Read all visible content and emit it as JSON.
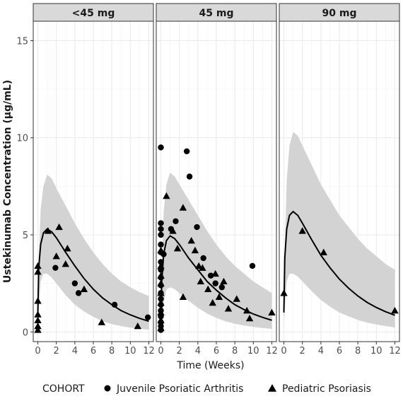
{
  "chart_data": {
    "type": "scatter",
    "title": "",
    "xlabel": "Time (Weeks)",
    "ylabel": "Ustekinumab Concentration (μg/mL)",
    "xlim": [
      -0.5,
      12.5
    ],
    "ylim": [
      -0.5,
      16
    ],
    "x_ticks": [
      0,
      2,
      4,
      6,
      8,
      10,
      12
    ],
    "y_ticks": [
      0,
      5,
      10,
      15
    ],
    "grid": true,
    "legend": {
      "title": "COHORT",
      "placement": "bottom",
      "entries": [
        {
          "label": "Juvenile Psoriatic Arthritis",
          "shape": "circle"
        },
        {
          "label": "Pediatric Psoriasis",
          "shape": "triangle"
        }
      ]
    },
    "colors": {
      "points": "#000000",
      "line": "#000000",
      "band": "#d3d3d3",
      "strip": "#d9d9d9",
      "grid": "#ebebeb"
    },
    "panels": [
      {
        "label": "<45 mg",
        "median_curve": [
          [
            0,
            1.0
          ],
          [
            0.1,
            3.3
          ],
          [
            0.3,
            4.5
          ],
          [
            0.6,
            5.1
          ],
          [
            1.0,
            5.3
          ],
          [
            1.5,
            5.15
          ],
          [
            2,
            4.85
          ],
          [
            3,
            4.1
          ],
          [
            4,
            3.4
          ],
          [
            5,
            2.75
          ],
          [
            6,
            2.2
          ],
          [
            7,
            1.75
          ],
          [
            8,
            1.4
          ],
          [
            9,
            1.1
          ],
          [
            10,
            0.88
          ],
          [
            11,
            0.7
          ],
          [
            12,
            0.55
          ]
        ],
        "band_upper": [
          [
            0,
            2.5
          ],
          [
            0.3,
            6.3
          ],
          [
            0.6,
            7.5
          ],
          [
            1.0,
            8.1
          ],
          [
            1.5,
            7.9
          ],
          [
            2,
            7.4
          ],
          [
            3,
            6.5
          ],
          [
            4,
            5.6
          ],
          [
            5,
            4.8
          ],
          [
            6,
            4.1
          ],
          [
            7,
            3.5
          ],
          [
            8,
            3.0
          ],
          [
            9,
            2.6
          ],
          [
            10,
            2.3
          ],
          [
            11,
            2.05
          ],
          [
            12,
            1.85
          ]
        ],
        "band_lower": [
          [
            0,
            0.3
          ],
          [
            0.3,
            2.6
          ],
          [
            0.6,
            3.0
          ],
          [
            1.0,
            3.0
          ],
          [
            1.5,
            2.8
          ],
          [
            2,
            2.5
          ],
          [
            3,
            1.9
          ],
          [
            4,
            1.4
          ],
          [
            5,
            1.05
          ],
          [
            6,
            0.78
          ],
          [
            7,
            0.55
          ],
          [
            8,
            0.4
          ],
          [
            9,
            0.3
          ],
          [
            10,
            0.22
          ],
          [
            11,
            0.16
          ],
          [
            12,
            0.12
          ]
        ],
        "points_juvenile": [
          [
            1.9,
            3.3
          ],
          [
            4.0,
            2.5
          ],
          [
            4.4,
            2.0
          ],
          [
            8.3,
            1.4
          ],
          [
            11.9,
            0.75
          ]
        ],
        "points_pediatric": [
          [
            0,
            0.1
          ],
          [
            0,
            0.3
          ],
          [
            0,
            0.6
          ],
          [
            0,
            0.9
          ],
          [
            0,
            1.6
          ],
          [
            0,
            3.1
          ],
          [
            0,
            3.4
          ],
          [
            1.1,
            5.2
          ],
          [
            2.0,
            3.9
          ],
          [
            2.3,
            5.4
          ],
          [
            3.0,
            3.5
          ],
          [
            3.2,
            4.3
          ],
          [
            5.0,
            2.2
          ],
          [
            6.9,
            0.5
          ],
          [
            10.8,
            0.3
          ]
        ]
      },
      {
        "label": "45 mg",
        "median_curve": [
          [
            0,
            0.4
          ],
          [
            0.1,
            2.6
          ],
          [
            0.3,
            4.0
          ],
          [
            0.6,
            4.7
          ],
          [
            1.0,
            4.95
          ],
          [
            1.5,
            4.8
          ],
          [
            2,
            4.5
          ],
          [
            3,
            3.8
          ],
          [
            4,
            3.2
          ],
          [
            5,
            2.6
          ],
          [
            6,
            2.15
          ],
          [
            7,
            1.75
          ],
          [
            8,
            1.4
          ],
          [
            9,
            1.15
          ],
          [
            10,
            0.92
          ],
          [
            11,
            0.75
          ],
          [
            12,
            0.6
          ]
        ],
        "band_upper": [
          [
            0,
            2.0
          ],
          [
            0.3,
            6.2
          ],
          [
            0.6,
            7.6
          ],
          [
            1.0,
            8.2
          ],
          [
            1.5,
            8.0
          ],
          [
            2,
            7.6
          ],
          [
            3,
            6.8
          ],
          [
            4,
            6.0
          ],
          [
            5,
            5.2
          ],
          [
            6,
            4.5
          ],
          [
            7,
            3.9
          ],
          [
            8,
            3.4
          ],
          [
            9,
            3.0
          ],
          [
            10,
            2.6
          ],
          [
            11,
            2.3
          ],
          [
            12,
            2.0
          ]
        ],
        "band_lower": [
          [
            0,
            0.1
          ],
          [
            0.3,
            1.5
          ],
          [
            0.6,
            2.2
          ],
          [
            1.0,
            2.3
          ],
          [
            1.5,
            2.2
          ],
          [
            2,
            2.0
          ],
          [
            3,
            1.6
          ],
          [
            4,
            1.25
          ],
          [
            5,
            0.95
          ],
          [
            6,
            0.72
          ],
          [
            7,
            0.55
          ],
          [
            8,
            0.42
          ],
          [
            9,
            0.33
          ],
          [
            10,
            0.26
          ],
          [
            11,
            0.2
          ],
          [
            12,
            0.16
          ]
        ],
        "points_juvenile": [
          [
            0,
            0.1
          ],
          [
            0,
            0.3
          ],
          [
            0,
            0.5
          ],
          [
            0,
            0.8
          ],
          [
            0,
            1.1
          ],
          [
            0,
            1.4
          ],
          [
            0,
            1.7
          ],
          [
            0,
            2.0
          ],
          [
            0,
            2.4
          ],
          [
            0,
            2.8
          ],
          [
            0,
            3.2
          ],
          [
            0,
            3.6
          ],
          [
            0,
            4.1
          ],
          [
            0,
            4.5
          ],
          [
            0,
            5.0
          ],
          [
            0,
            5.3
          ],
          [
            0,
            5.6
          ],
          [
            0,
            9.5
          ],
          [
            0.3,
            4.0
          ],
          [
            1.1,
            5.3
          ],
          [
            1.6,
            5.7
          ],
          [
            2.8,
            9.3
          ],
          [
            3.1,
            8.0
          ],
          [
            3.9,
            5.4
          ],
          [
            4.6,
            3.8
          ],
          [
            5.4,
            2.9
          ],
          [
            5.9,
            2.5
          ],
          [
            6.6,
            2.3
          ],
          [
            9.9,
            3.4
          ]
        ],
        "points_pediatric": [
          [
            0,
            0.2
          ],
          [
            0,
            0.6
          ],
          [
            0,
            1.0
          ],
          [
            0,
            1.5
          ],
          [
            0,
            2.0
          ],
          [
            0,
            2.5
          ],
          [
            0,
            2.9
          ],
          [
            0,
            3.4
          ],
          [
            0,
            4.2
          ],
          [
            0.6,
            7.0
          ],
          [
            1.3,
            5.2
          ],
          [
            1.8,
            4.3
          ],
          [
            2.4,
            6.4
          ],
          [
            2.4,
            1.8
          ],
          [
            3.3,
            4.7
          ],
          [
            3.7,
            4.2
          ],
          [
            4.1,
            3.4
          ],
          [
            4.3,
            2.6
          ],
          [
            4.5,
            3.3
          ],
          [
            5.1,
            2.2
          ],
          [
            5.6,
            1.5
          ],
          [
            5.9,
            3.0
          ],
          [
            6.3,
            1.8
          ],
          [
            6.8,
            2.6
          ],
          [
            7.3,
            1.2
          ],
          [
            8.2,
            1.7
          ],
          [
            9.3,
            1.1
          ],
          [
            9.6,
            0.7
          ],
          [
            12.0,
            1.0
          ]
        ]
      },
      {
        "label": "90 mg",
        "median_curve": [
          [
            0,
            1.0
          ],
          [
            0.1,
            3.8
          ],
          [
            0.3,
            5.3
          ],
          [
            0.6,
            6.0
          ],
          [
            1.0,
            6.2
          ],
          [
            1.5,
            6.0
          ],
          [
            2,
            5.6
          ],
          [
            3,
            4.75
          ],
          [
            4,
            3.95
          ],
          [
            5,
            3.3
          ],
          [
            6,
            2.72
          ],
          [
            7,
            2.25
          ],
          [
            8,
            1.85
          ],
          [
            9,
            1.52
          ],
          [
            10,
            1.26
          ],
          [
            11,
            1.04
          ],
          [
            12,
            0.86
          ]
        ],
        "band_upper": [
          [
            0,
            2.5
          ],
          [
            0.3,
            7.8
          ],
          [
            0.6,
            9.6
          ],
          [
            1.0,
            10.3
          ],
          [
            1.5,
            10.1
          ],
          [
            2,
            9.6
          ],
          [
            3,
            8.6
          ],
          [
            4,
            7.6
          ],
          [
            5,
            6.8
          ],
          [
            6,
            6.0
          ],
          [
            7,
            5.4
          ],
          [
            8,
            4.8
          ],
          [
            9,
            4.3
          ],
          [
            10,
            3.9
          ],
          [
            11,
            3.5
          ],
          [
            12,
            3.2
          ]
        ],
        "band_lower": [
          [
            0,
            0.4
          ],
          [
            0.3,
            2.6
          ],
          [
            0.6,
            3.0
          ],
          [
            1.0,
            3.0
          ],
          [
            1.5,
            2.85
          ],
          [
            2,
            2.6
          ],
          [
            3,
            2.1
          ],
          [
            4,
            1.65
          ],
          [
            5,
            1.3
          ],
          [
            6,
            1.0
          ],
          [
            7,
            0.8
          ],
          [
            8,
            0.62
          ],
          [
            9,
            0.48
          ],
          [
            10,
            0.38
          ],
          [
            11,
            0.3
          ],
          [
            12,
            0.23
          ]
        ],
        "points_juvenile": [],
        "points_pediatric": [
          [
            0,
            2.0
          ],
          [
            2.0,
            5.2
          ],
          [
            4.3,
            4.1
          ],
          [
            12.0,
            1.1
          ]
        ]
      }
    ]
  }
}
